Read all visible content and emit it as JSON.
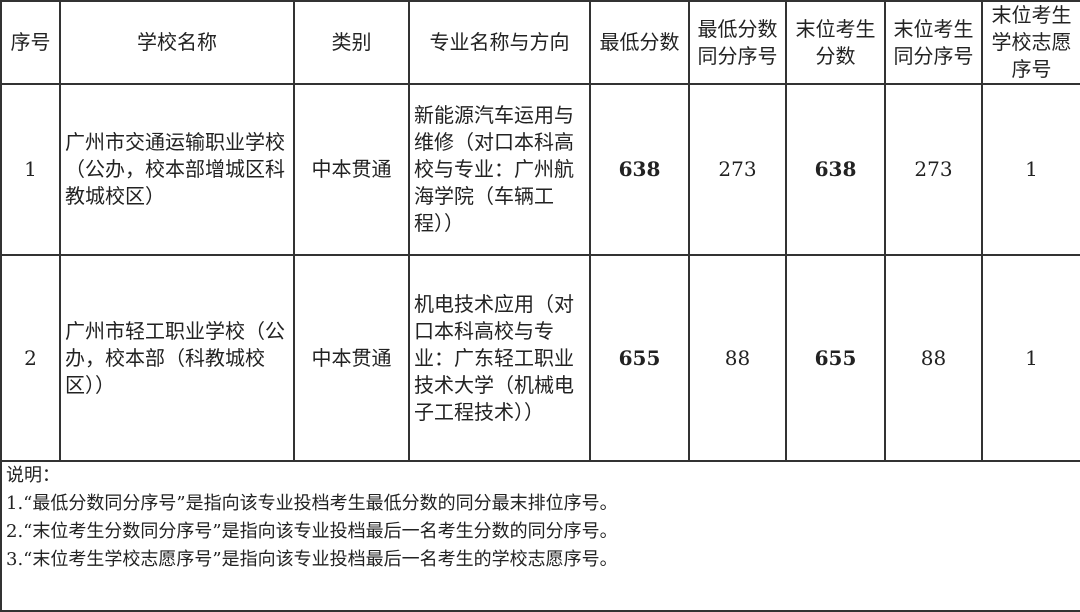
{
  "headers": [
    "序号",
    "学校名称",
    "类别",
    "专业名称与方向",
    "最低分数",
    "最低分数同分序号",
    "末位考生分数",
    "末位考生同分序号",
    "末位考生学校志愿序号"
  ],
  "rows": [
    {
      "no": "1",
      "school": "广州市交通运输职业学校（公办，校本部增城区科教城校区）",
      "category": "中本贯通",
      "major": "新能源汽车运用与维修（对口本科高校与专业：广州航海学院（车辆工程））",
      "min_score": "638",
      "min_rank": "273",
      "last_score": "638",
      "last_rank": "273",
      "last_pref": "1"
    },
    {
      "no": "2",
      "school": "广州市轻工职业学校（公办，校本部（科教城校区））",
      "category": "中本贯通",
      "major": "机电技术应用（对口本科高校与专业：广东轻工职业技术大学（机械电子工程技术））",
      "min_score": "655",
      "min_rank": "88",
      "last_score": "655",
      "last_rank": "88",
      "last_pref": "1"
    }
  ],
  "notes": {
    "title": "说明：",
    "items": [
      "1.“最低分数同分序号”是指向该专业投档考生最低分数的同分最末排位序号。",
      "2.“末位考生分数同分序号”是指向该专业投档最后一名考生分数的同分序号。",
      "3.“末位考生学校志愿序号”是指向该专业投档最后一名考生的学校志愿序号。"
    ]
  }
}
